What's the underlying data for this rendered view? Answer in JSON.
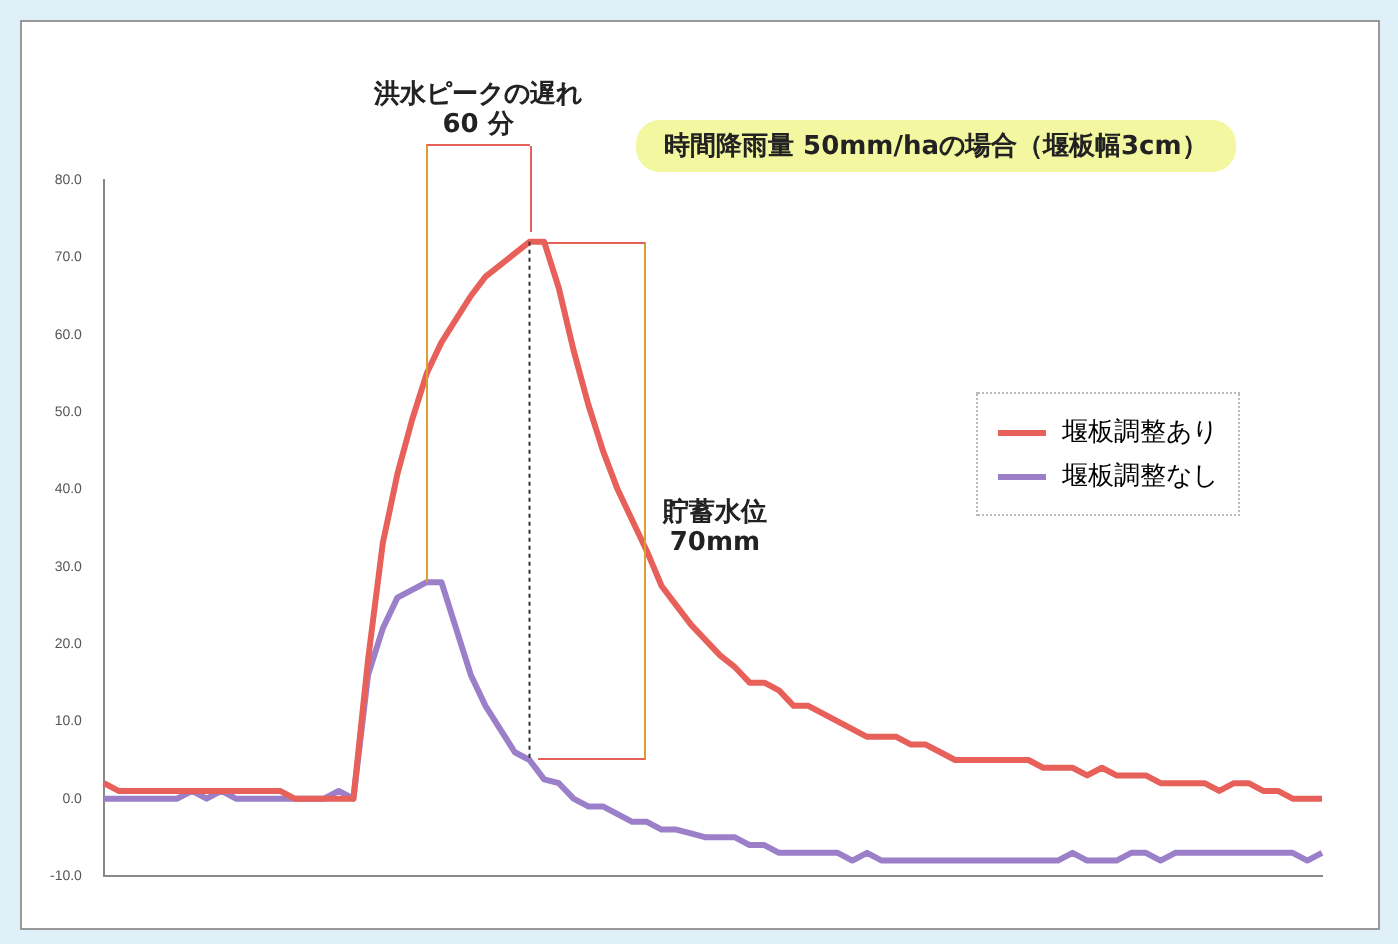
{
  "chart_data": {
    "type": "line",
    "title": "時間降雨量 50mm/haの場合（堰板幅3cm）",
    "categories": [
      null,
      null,
      null,
      null,
      null,
      null,
      null,
      null,
      null,
      null,
      null,
      null,
      null,
      null,
      null,
      null,
      null,
      null,
      null,
      null,
      null,
      null,
      null,
      null,
      null,
      null,
      null,
      null,
      null,
      null,
      null,
      null,
      null,
      null,
      null,
      null,
      null,
      null,
      null,
      null,
      null,
      null,
      null,
      null,
      null,
      null,
      null,
      null,
      null,
      null,
      null,
      null,
      null,
      null,
      null,
      null,
      null,
      null,
      null,
      null,
      null,
      null,
      null,
      null,
      null,
      null,
      null,
      null,
      null,
      null,
      null,
      null,
      null,
      null,
      null,
      null,
      null,
      null,
      null,
      null,
      null,
      null,
      null,
      null
    ],
    "series": [
      {
        "name": "堰板調整あり",
        "color": "#e8605a",
        "values": [
          2,
          1,
          1,
          1,
          1,
          1,
          1,
          1,
          1,
          1,
          1,
          1,
          1,
          0,
          0,
          0,
          0,
          0,
          18,
          33,
          42,
          49,
          55,
          59,
          62,
          65,
          67.5,
          69,
          70.5,
          72,
          72,
          66,
          58,
          51,
          45,
          40,
          36,
          32,
          27.5,
          25,
          22.5,
          20.5,
          18.5,
          17,
          15,
          15,
          14,
          12,
          12,
          11,
          10,
          9,
          8,
          8,
          8,
          7,
          7,
          6,
          5,
          5,
          5,
          5,
          5,
          5,
          4,
          4,
          4,
          3,
          4,
          3,
          3,
          3,
          2,
          2,
          2,
          2,
          1,
          2,
          2,
          1,
          1,
          0,
          0,
          0
        ]
      },
      {
        "name": "堰板調整なし",
        "color": "#9b7fc8",
        "values": [
          0,
          0,
          0,
          0,
          0,
          0,
          1,
          0,
          1,
          0,
          0,
          0,
          0,
          0,
          0,
          0,
          1,
          0,
          16,
          22,
          26,
          27,
          28,
          28,
          22,
          16,
          12,
          9,
          6,
          5,
          2.5,
          2,
          0,
          -1,
          -1,
          -2,
          -3,
          -3,
          -4,
          -4,
          -4.5,
          -5,
          -5,
          -5,
          -6,
          -6,
          -7,
          -7,
          -7,
          -7,
          -7,
          -8,
          -7,
          -8,
          -8,
          -8,
          -8,
          -8,
          -8,
          -8,
          -8,
          -8,
          -8,
          -8,
          -8,
          -8,
          -7,
          -8,
          -8,
          -8,
          -7,
          -7,
          -8,
          -7,
          -7,
          -7,
          -7,
          -7,
          -7,
          -7,
          -7,
          -7,
          -8,
          -7
        ]
      }
    ],
    "ylim": [
      -10,
      80
    ],
    "yticks": [
      {
        "value": -10,
        "label": "-10.0"
      },
      {
        "value": 0,
        "label": "0.0"
      },
      {
        "value": 10,
        "label": "10.0"
      },
      {
        "value": 20,
        "label": "20.0"
      },
      {
        "value": 30,
        "label": "30.0"
      },
      {
        "value": 40,
        "label": "40.0"
      },
      {
        "value": 50,
        "label": "50.0"
      },
      {
        "value": 60,
        "label": "60.0"
      },
      {
        "value": 70,
        "label": "70.0"
      },
      {
        "value": 80,
        "label": "80.0"
      }
    ],
    "tick_labels": "y",
    "grid": false,
    "legend": "right",
    "marker": "none",
    "line_style": "solid",
    "annotations": [
      "洪水ピークの遅れ\n60 分",
      "貯蓄水位\n70mm"
    ]
  }
}
